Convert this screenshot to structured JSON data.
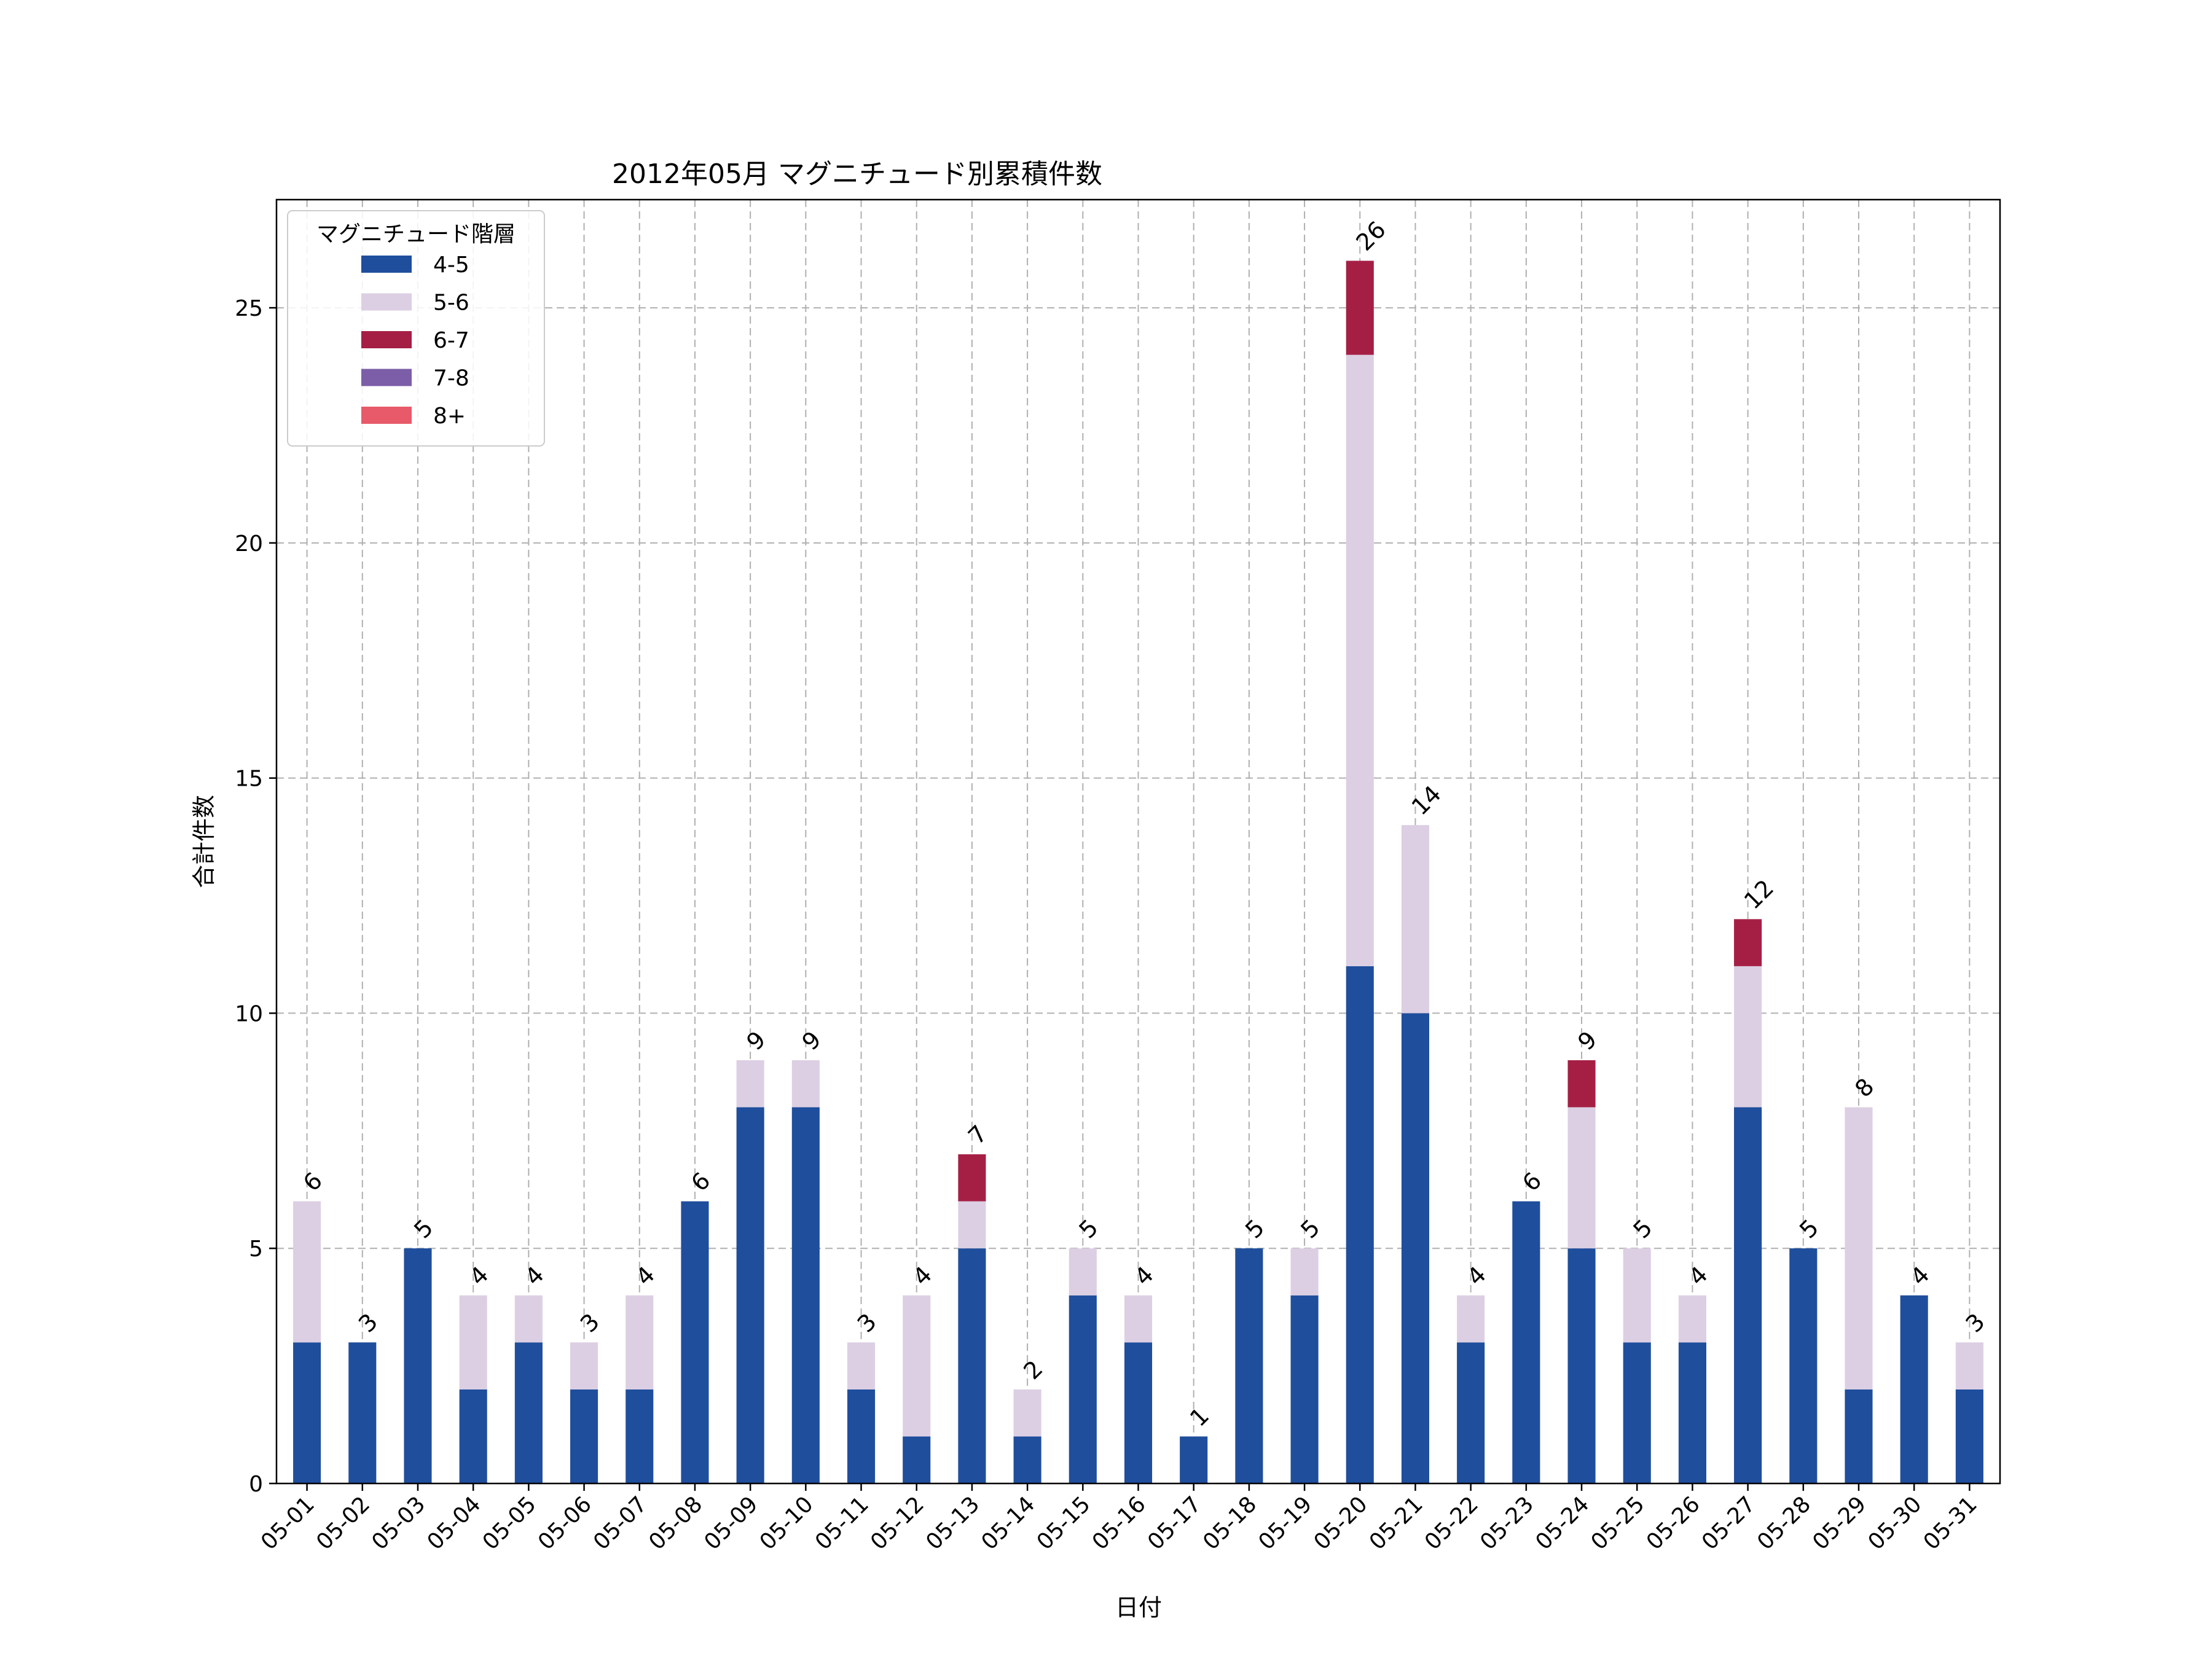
{
  "chart_data": {
    "type": "bar",
    "stacked": true,
    "title": "2012年05月 マグニチュード別累積件数",
    "xlabel": "日付",
    "ylabel": "合計件数",
    "ylim": [
      0,
      27.3
    ],
    "yticks": [
      0,
      5,
      10,
      15,
      20,
      25
    ],
    "grid": true,
    "legend": {
      "title": "マグニチュード階層",
      "position": "top-left"
    },
    "categories": [
      "05-01",
      "05-02",
      "05-03",
      "05-04",
      "05-05",
      "05-06",
      "05-07",
      "05-08",
      "05-09",
      "05-10",
      "05-11",
      "05-12",
      "05-13",
      "05-14",
      "05-15",
      "05-16",
      "05-17",
      "05-18",
      "05-19",
      "05-20",
      "05-21",
      "05-22",
      "05-23",
      "05-24",
      "05-25",
      "05-26",
      "05-27",
      "05-28",
      "05-29",
      "05-30",
      "05-31"
    ],
    "series": [
      {
        "name": "4-5",
        "color": "#1f4e9c",
        "values": [
          3,
          3,
          5,
          2,
          3,
          2,
          2,
          6,
          8,
          8,
          2,
          1,
          5,
          1,
          4,
          3,
          1,
          5,
          4,
          11,
          10,
          3,
          6,
          5,
          3,
          3,
          8,
          5,
          2,
          4,
          2
        ]
      },
      {
        "name": "5-6",
        "color": "#dccfe3",
        "values": [
          3,
          0,
          0,
          2,
          1,
          1,
          2,
          0,
          1,
          1,
          1,
          3,
          1,
          1,
          1,
          1,
          0,
          0,
          1,
          13,
          4,
          1,
          0,
          3,
          2,
          1,
          3,
          0,
          6,
          0,
          1
        ]
      },
      {
        "name": "6-7",
        "color": "#a51f45",
        "values": [
          0,
          0,
          0,
          0,
          0,
          0,
          0,
          0,
          0,
          0,
          0,
          0,
          1,
          0,
          0,
          0,
          0,
          0,
          0,
          2,
          0,
          0,
          0,
          1,
          0,
          0,
          1,
          0,
          0,
          0,
          0
        ]
      },
      {
        "name": "7-8",
        "color": "#7b5ea7",
        "values": [
          0,
          0,
          0,
          0,
          0,
          0,
          0,
          0,
          0,
          0,
          0,
          0,
          0,
          0,
          0,
          0,
          0,
          0,
          0,
          0,
          0,
          0,
          0,
          0,
          0,
          0,
          0,
          0,
          0,
          0,
          0
        ]
      },
      {
        "name": "8+",
        "color": "#e85a6a",
        "values": [
          0,
          0,
          0,
          0,
          0,
          0,
          0,
          0,
          0,
          0,
          0,
          0,
          0,
          0,
          0,
          0,
          0,
          0,
          0,
          0,
          0,
          0,
          0,
          0,
          0,
          0,
          0,
          0,
          0,
          0,
          0
        ]
      }
    ],
    "totals": [
      6,
      3,
      5,
      4,
      4,
      3,
      4,
      6,
      9,
      9,
      3,
      4,
      7,
      2,
      5,
      4,
      1,
      5,
      5,
      26,
      14,
      4,
      6,
      9,
      5,
      4,
      12,
      5,
      8,
      4,
      3
    ]
  }
}
